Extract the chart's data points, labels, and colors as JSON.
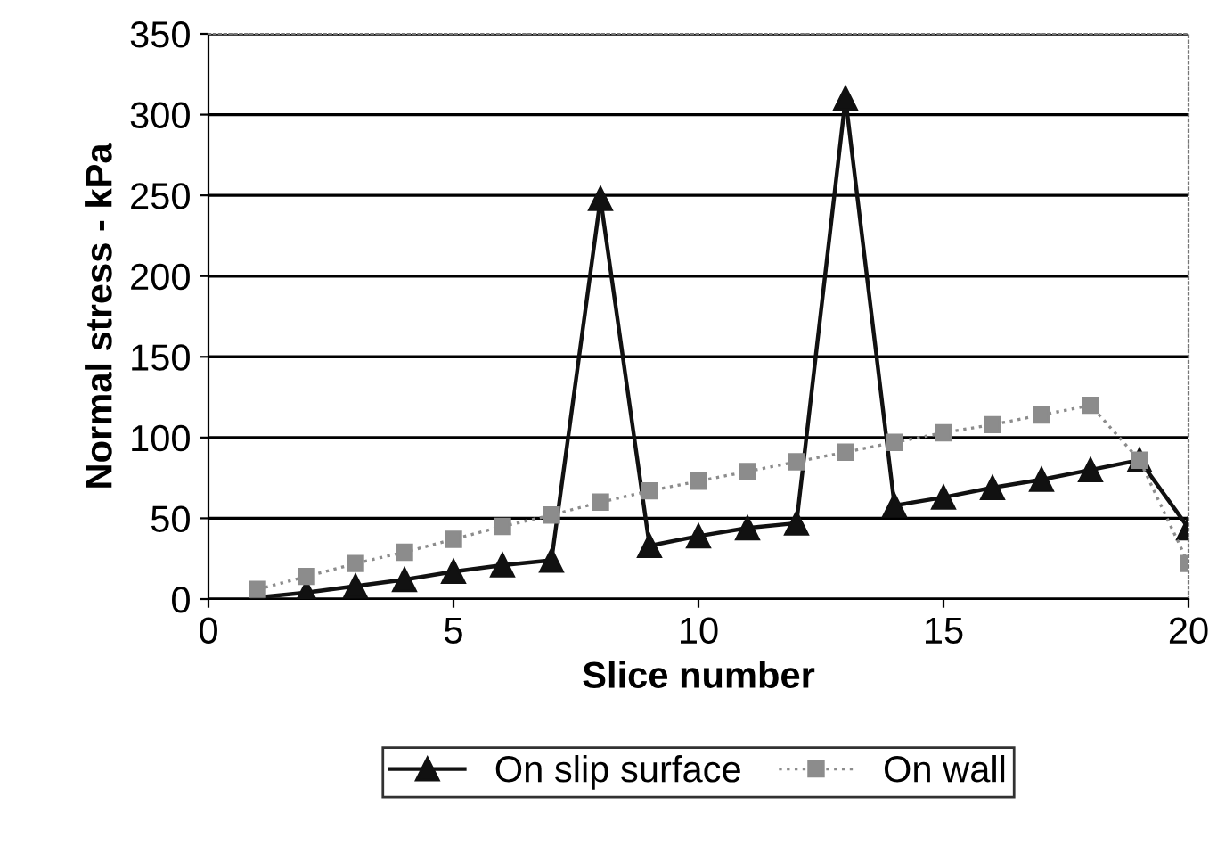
{
  "chart_data": {
    "type": "line",
    "xlabel": "Slice number",
    "ylabel": "Normal stress - kPa",
    "xlim": [
      0,
      20
    ],
    "xticks": [
      0,
      5,
      10,
      15,
      20
    ],
    "ylim": [
      0,
      350
    ],
    "yticks": [
      0,
      50,
      100,
      150,
      200,
      250,
      300,
      350
    ],
    "grid": "y",
    "legend": "bottom",
    "series": [
      {
        "name": "On slip surface",
        "color": "#111111",
        "marker": "triangle",
        "line_style": "solid",
        "x": [
          1,
          2,
          3,
          4,
          5,
          6,
          7,
          8,
          9,
          10,
          11,
          12,
          13,
          14,
          15,
          16,
          17,
          18,
          19,
          20
        ],
        "values": [
          1,
          4,
          8,
          12,
          17,
          21,
          24,
          248,
          33,
          39,
          44,
          47,
          310,
          58,
          63,
          69,
          74,
          80,
          86,
          44
        ]
      },
      {
        "name": "On wall",
        "color": "#8c8c8c",
        "marker": "square",
        "line_style": "dotted",
        "x": [
          1,
          2,
          3,
          4,
          5,
          6,
          7,
          8,
          9,
          10,
          11,
          12,
          13,
          14,
          15,
          16,
          17,
          18,
          19,
          20
        ],
        "values": [
          6,
          14,
          22,
          29,
          37,
          45,
          52,
          60,
          67,
          73,
          79,
          85,
          91,
          97,
          103,
          108,
          114,
          120,
          86,
          22
        ]
      }
    ]
  }
}
